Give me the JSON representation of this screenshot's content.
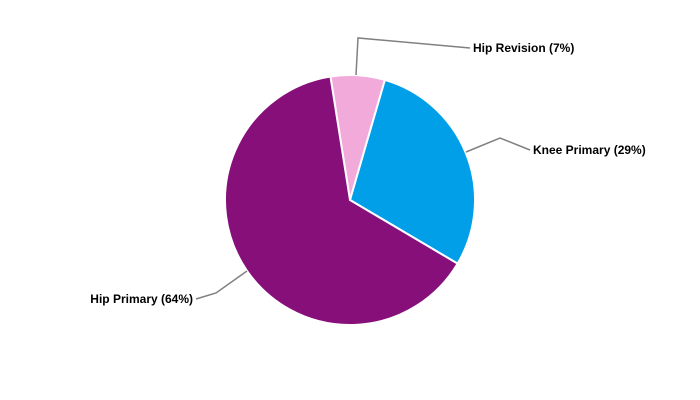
{
  "chart_data": {
    "type": "pie",
    "title": "",
    "slices": [
      {
        "label": "Hip Revision (7%)",
        "name": "Hip Revision",
        "value": 7,
        "color": "#F2AADB"
      },
      {
        "label": "Knee Primary (29%)",
        "name": "Knee Primary",
        "value": 29,
        "color": "#009FE8"
      },
      {
        "label": "Hip Primary (64%)",
        "name": "Hip Primary",
        "value": 64,
        "color": "#870F7A"
      }
    ],
    "start_angle_deg": -9,
    "direction": "clockwise",
    "legend": "none"
  }
}
